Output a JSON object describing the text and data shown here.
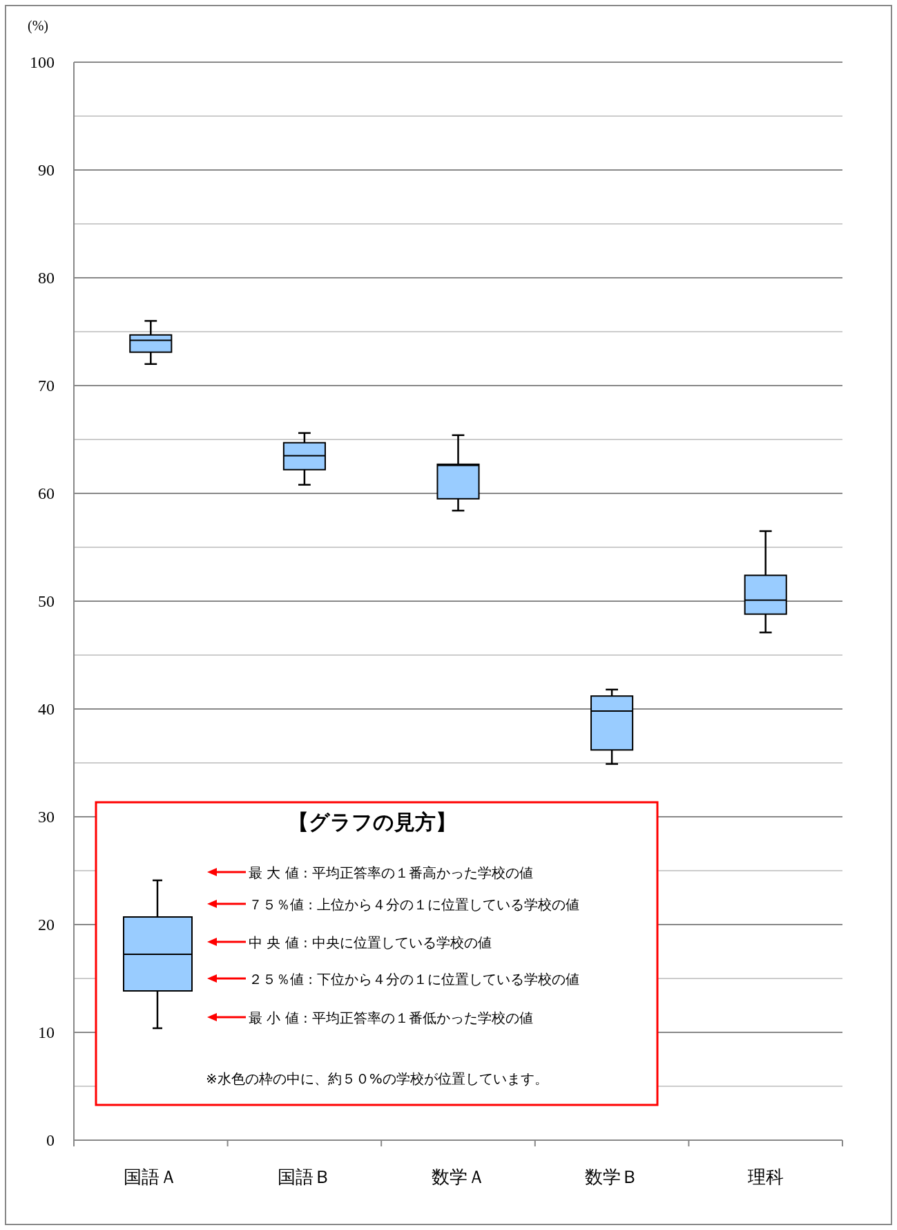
{
  "chart_data": {
    "type": "box",
    "ylabel": "(%)",
    "categories": [
      "国語Ａ",
      "国語Ｂ",
      "数学Ａ",
      "数学Ｂ",
      "理科"
    ],
    "series": [
      {
        "color": "#99ccff",
        "boxes": [
          {
            "low": 72.0,
            "q1": 73.1,
            "median": 74.2,
            "q3": 74.7,
            "high": 76.0
          },
          {
            "low": 60.8,
            "q1": 62.2,
            "median": 63.5,
            "q3": 64.7,
            "high": 65.6
          },
          {
            "low": 58.4,
            "q1": 59.5,
            "median": 62.6,
            "q3": 62.7,
            "high": 65.4
          },
          {
            "low": 34.9,
            "q1": 36.2,
            "median": 39.8,
            "q3": 41.2,
            "high": 41.8
          },
          {
            "low": 47.1,
            "q1": 48.8,
            "median": 50.1,
            "q3": 52.4,
            "high": 56.5
          }
        ]
      }
    ],
    "ylim": [
      0,
      100
    ],
    "yticks": [
      0,
      {
        "value": 5,
        "label": null
      },
      10,
      {
        "value": 15,
        "label": null
      },
      20,
      {
        "value": 25,
        "label": null
      },
      30,
      {
        "value": 35,
        "label": null
      },
      40,
      {
        "value": 45,
        "label": null
      },
      50,
      {
        "value": 55,
        "label": null
      },
      60,
      {
        "value": 65,
        "label": null
      },
      70,
      {
        "value": 75,
        "label": null
      },
      80,
      {
        "value": 85,
        "label": null
      },
      90,
      {
        "value": 95,
        "label": null
      },
      100
    ],
    "grid": "y",
    "annotations": [
      "【グラフの見方】",
      "最 大 値 : 平均正答率の１番高かった学校の値",
      "７５％値 : 上位から４分の１に位置している学校の値",
      "中 央 値 : 中央に位置している学校の値",
      "２５％値 : 下位から４分の１に位置している学校の値",
      "最 小 値 : 平均正答率の１番低かった学校の値",
      "※水色の枠の中に、約５０%の学校が位置しています。"
    ]
  }
}
